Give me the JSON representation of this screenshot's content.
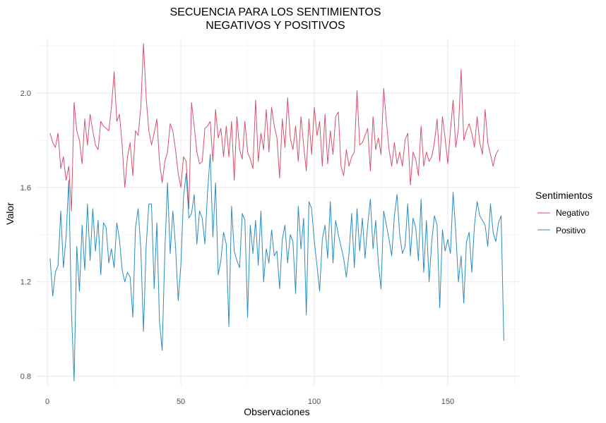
{
  "chart_data": {
    "type": "line",
    "title_line1": "SECUENCIA PARA LOS SENTIMIENTOS",
    "title_line2": "NEGATIVOS Y POSITIVOS",
    "xlabel": "Observaciones",
    "ylabel": "Valor",
    "xlim": [
      -4,
      177
    ],
    "ylim": [
      0.76,
      2.23
    ],
    "x_ticks": [
      0,
      50,
      100,
      150
    ],
    "x_minor_ticks": [
      25,
      75,
      125,
      175
    ],
    "y_ticks": [
      0.8,
      1.2,
      1.6,
      2.0
    ],
    "y_minor_ticks": [
      1.0,
      1.4,
      1.8,
      2.2
    ],
    "grid": true,
    "legend": {
      "title": "Sentimientos",
      "position": "right"
    },
    "series": [
      {
        "name": "Negativo",
        "color": "#d6506e",
        "values": [
          1.83,
          1.79,
          1.77,
          1.83,
          1.68,
          1.73,
          1.63,
          1.69,
          1.5,
          1.96,
          1.84,
          1.8,
          1.7,
          1.89,
          1.78,
          1.91,
          1.84,
          1.78,
          1.76,
          1.88,
          1.86,
          1.85,
          1.84,
          1.94,
          2.09,
          1.88,
          1.91,
          1.78,
          1.6,
          1.73,
          1.79,
          1.65,
          1.84,
          1.82,
          1.94,
          2.21,
          1.98,
          1.84,
          1.78,
          1.83,
          1.89,
          1.71,
          1.62,
          1.71,
          1.75,
          1.87,
          1.84,
          1.76,
          1.66,
          1.6,
          1.73,
          1.71,
          1.51,
          1.96,
          1.86,
          1.75,
          1.7,
          1.71,
          1.85,
          1.86,
          1.88,
          1.71,
          1.93,
          1.81,
          1.85,
          1.73,
          1.86,
          1.73,
          1.88,
          1.63,
          1.9,
          1.76,
          1.72,
          1.88,
          1.75,
          1.72,
          1.68,
          1.97,
          1.71,
          1.83,
          1.76,
          1.93,
          1.75,
          1.94,
          1.86,
          1.81,
          1.64,
          1.89,
          1.77,
          1.98,
          1.81,
          1.76,
          1.86,
          1.71,
          1.9,
          1.78,
          1.67,
          1.89,
          1.74,
          1.94,
          1.82,
          1.88,
          1.69,
          1.91,
          1.7,
          1.84,
          1.74,
          1.9,
          1.92,
          1.69,
          1.65,
          1.76,
          1.69,
          1.73,
          1.75,
          2.01,
          1.78,
          1.79,
          1.82,
          1.85,
          1.67,
          1.9,
          1.76,
          1.81,
          1.74,
          2.02,
          1.88,
          1.76,
          1.69,
          1.79,
          1.7,
          1.75,
          1.69,
          1.8,
          1.83,
          1.61,
          1.75,
          1.72,
          1.65,
          1.86,
          1.69,
          1.75,
          1.71,
          1.73,
          1.79,
          1.89,
          1.71,
          1.9,
          1.81,
          1.7,
          1.84,
          1.97,
          1.77,
          1.85,
          2.1,
          1.8,
          1.84,
          1.87,
          1.83,
          1.77,
          1.9,
          1.79,
          1.74,
          1.93,
          1.79,
          1.74,
          1.69,
          1.74,
          1.76
        ]
      },
      {
        "name": "Positivo",
        "color": "#2b8cbe",
        "values": [
          1.3,
          1.14,
          1.24,
          1.27,
          1.5,
          1.26,
          1.39,
          1.63,
          1.08,
          0.78,
          1.35,
          1.16,
          1.44,
          1.25,
          1.53,
          1.29,
          1.51,
          1.33,
          1.46,
          1.23,
          1.45,
          1.43,
          1.28,
          1.34,
          1.26,
          1.45,
          1.38,
          1.25,
          1.2,
          1.24,
          1.22,
          1.05,
          1.43,
          1.51,
          1.34,
          0.99,
          1.35,
          1.53,
          1.53,
          1.17,
          1.45,
          1.03,
          0.91,
          1.33,
          1.62,
          1.32,
          1.5,
          1.35,
          1.12,
          1.27,
          1.56,
          1.66,
          1.47,
          1.49,
          1.57,
          1.36,
          1.5,
          1.47,
          1.36,
          1.58,
          1.74,
          1.39,
          1.62,
          1.23,
          1.29,
          1.41,
          1.36,
          1.01,
          1.52,
          1.33,
          1.29,
          1.26,
          1.49,
          1.46,
          1.05,
          1.44,
          1.32,
          1.46,
          1.27,
          1.5,
          1.2,
          1.34,
          1.28,
          1.42,
          1.31,
          1.33,
          1.17,
          1.38,
          1.44,
          1.28,
          1.4,
          1.37,
          1.15,
          1.52,
          1.34,
          1.47,
          1.06,
          1.54,
          1.51,
          1.37,
          1.27,
          1.16,
          1.38,
          1.44,
          1.3,
          1.54,
          1.28,
          1.46,
          1.4,
          1.35,
          1.3,
          1.22,
          1.32,
          1.49,
          1.26,
          1.51,
          1.33,
          1.47,
          1.3,
          1.44,
          1.55,
          1.34,
          1.46,
          1.28,
          1.17,
          1.5,
          1.44,
          1.38,
          1.31,
          1.48,
          1.57,
          1.4,
          1.32,
          1.35,
          1.53,
          1.31,
          1.47,
          1.43,
          1.29,
          1.55,
          1.24,
          1.46,
          1.2,
          1.37,
          1.48,
          1.44,
          1.09,
          1.42,
          1.33,
          1.38,
          1.32,
          1.58,
          1.41,
          1.2,
          1.31,
          1.11,
          1.37,
          1.41,
          1.24,
          1.44,
          1.54,
          1.48,
          1.46,
          1.44,
          1.35,
          1.53,
          1.41,
          1.37,
          1.45,
          1.48,
          0.95
        ]
      }
    ]
  }
}
